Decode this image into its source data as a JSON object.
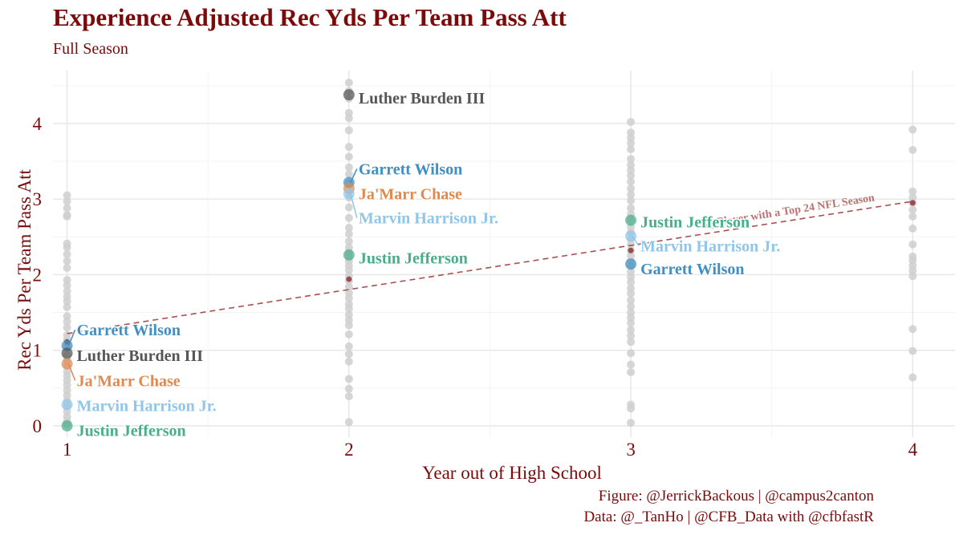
{
  "title": "Experience Adjusted Rec Yds Per Team Pass Att",
  "subtitle": "Full Season",
  "caption": {
    "line1": "Figure: @JerrickBackous | @campus2canton",
    "line2": "Data: @_TanHo | @CFB_Data with @cfbfastR"
  },
  "colors": {
    "title": "#7b0a0a",
    "background_points": "#cfcfcf",
    "average_points": "#8b2a2a",
    "trend_line": "#a85050",
    "grid": "#ebebeb"
  },
  "chart_data": {
    "type": "scatter",
    "xlabel": "Year out of High School",
    "ylabel": "Rec Yds Per Team Pass Att",
    "xlim": [
      0.95,
      4.15
    ],
    "ylim": [
      -0.15,
      4.7
    ],
    "x_ticks": [
      1,
      2,
      3,
      4
    ],
    "y_ticks": [
      0,
      1,
      2,
      3,
      4
    ],
    "grid": true,
    "legend": "none",
    "background_points": [
      {
        "x": 1,
        "y": [
          3.05,
          2.97,
          2.88,
          2.79,
          2.77,
          2.41,
          2.36,
          2.27,
          2.18,
          2.09,
          1.93,
          1.86,
          1.78,
          1.71,
          1.65,
          1.57,
          1.45,
          1.38,
          1.3,
          1.2,
          1.14,
          1.04,
          0.93,
          0.87,
          0.79,
          0.72,
          0.66,
          0.6,
          0.54,
          0.47,
          0.4,
          0.33,
          0.26,
          0.19,
          0.12,
          0.06,
          0.02
        ]
      },
      {
        "x": 2,
        "y": [
          4.54,
          4.43,
          4.33,
          4.14,
          4.07,
          3.91,
          3.69,
          3.56,
          3.42,
          3.33,
          3.21,
          3.02,
          2.89,
          2.75,
          2.62,
          2.54,
          2.44,
          2.36,
          2.3,
          2.25,
          2.18,
          2.12,
          2.06,
          1.98,
          1.92,
          1.84,
          1.76,
          1.69,
          1.61,
          1.55,
          1.47,
          1.4,
          1.33,
          1.21,
          1.05,
          0.95,
          0.85,
          0.62,
          0.49,
          0.39,
          0.05
        ]
      },
      {
        "x": 3,
        "y": [
          4.02,
          3.88,
          3.81,
          3.74,
          3.66,
          3.53,
          3.45,
          3.38,
          3.31,
          3.23,
          3.14,
          3.06,
          2.98,
          2.88,
          2.8,
          2.72,
          2.63,
          2.56,
          2.47,
          2.4,
          2.32,
          2.25,
          2.18,
          2.11,
          2.04,
          1.97,
          1.9,
          1.82,
          1.75,
          1.66,
          1.58,
          1.5,
          1.43,
          1.36,
          1.27,
          1.19,
          1.11,
          0.96,
          0.81,
          0.71,
          0.28,
          0.23,
          0.04
        ]
      },
      {
        "x": 4,
        "y": [
          3.92,
          3.65,
          3.1,
          3.02,
          2.95,
          2.86,
          2.77,
          2.61,
          2.4,
          2.24,
          2.19,
          2.12,
          2.05,
          1.98,
          1.28,
          0.99,
          0.64
        ]
      }
    ],
    "average_points": [
      {
        "x": 1,
        "y": 1.11
      },
      {
        "x": 2,
        "y": 1.94
      },
      {
        "x": 3,
        "y": 2.32
      },
      {
        "x": 4,
        "y": 2.95
      }
    ],
    "trend_line": {
      "label": "Avg Player with a Top 24 NFL Season",
      "x": [
        1,
        4
      ],
      "y": [
        1.22,
        2.97
      ]
    },
    "series": [
      {
        "name": "Garrett Wilson",
        "color": "#3f8fc4",
        "x": [
          1,
          2,
          3
        ],
        "y": [
          1.06,
          3.22,
          2.14
        ]
      },
      {
        "name": "Luther Burden III",
        "color": "#555555",
        "x": [
          1,
          2
        ],
        "y": [
          0.96,
          4.38
        ]
      },
      {
        "name": "Ja'Marr Chase",
        "color": "#e08a4f",
        "x": [
          1,
          2
        ],
        "y": [
          0.82,
          3.14
        ]
      },
      {
        "name": "Marvin Harrison Jr.",
        "color": "#8fc6ea",
        "x": [
          1,
          2,
          3
        ],
        "y": [
          0.28,
          3.07,
          2.51
        ]
      },
      {
        "name": "Justin Jefferson",
        "color": "#4aae8c",
        "x": [
          1,
          2,
          3
        ],
        "y": [
          0.0,
          2.26,
          2.72
        ]
      }
    ]
  }
}
